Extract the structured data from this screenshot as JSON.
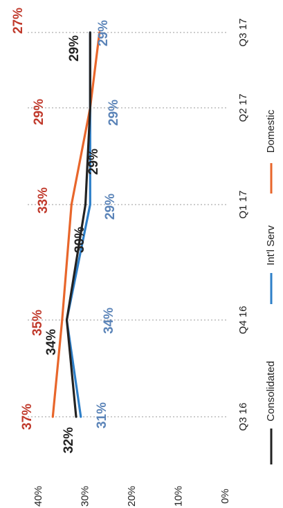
{
  "chart_data": {
    "type": "line",
    "orientation": "rotated-90-clockwise",
    "categories": [
      "Q3 16",
      "Q4 16",
      "Q1 17",
      "Q2 17",
      "Q3 17"
    ],
    "y_ticks": [
      "0%",
      "10%",
      "20%",
      "30%",
      "40%"
    ],
    "ylim": [
      0,
      40
    ],
    "grid": "vertical dotted lines at categories",
    "legend_position": "bottom",
    "series": [
      {
        "name": "Consolidated",
        "color": "#222222",
        "values": [
          32,
          34,
          30,
          29,
          29
        ],
        "labels": [
          "32%",
          "34%",
          "30%",
          "29%",
          "29%"
        ]
      },
      {
        "name": "Int'l Serv",
        "color": "#2e7fc8",
        "values": [
          31,
          34,
          29,
          29,
          29
        ],
        "labels": [
          "31%",
          "34%",
          "29%",
          "29%",
          "29%"
        ]
      },
      {
        "name": "Domestic",
        "color": "#e8662b",
        "values": [
          37,
          35,
          33,
          29,
          27
        ],
        "labels": [
          "37%",
          "35%",
          "33%",
          "29%",
          "27%"
        ]
      }
    ],
    "label_colors": {
      "Consolidated": "#222222",
      "Int'l Serv": "#5b84b8",
      "Domestic": "#c0392b"
    }
  }
}
